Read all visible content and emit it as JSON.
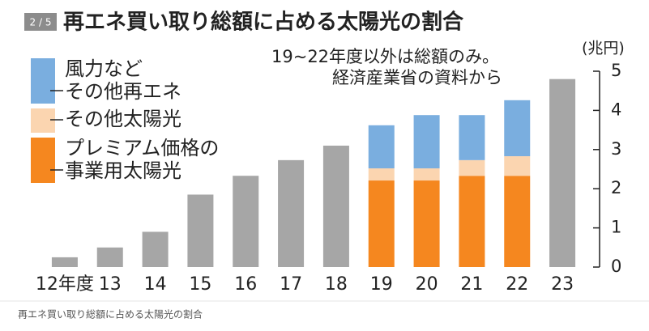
{
  "header": {
    "badge": "2 / 5"
  },
  "chart_data": {
    "type": "stacked_bar",
    "title": "再エネ買い取り総額に占める太陽光の割合",
    "note": [
      "19~22年度以外は総額のみ。",
      "経済産業省の資料から"
    ],
    "unit": "(兆円)",
    "categories": [
      "12年度",
      "13",
      "14",
      "15",
      "16",
      "17",
      "18",
      "19",
      "20",
      "21",
      "22",
      "23"
    ],
    "series": [
      {
        "name": null,
        "color": "#a6a6a6",
        "values": [
          0.25,
          0.5,
          0.9,
          1.85,
          2.33,
          2.73,
          3.1,
          null,
          null,
          null,
          null,
          4.8
        ]
      },
      {
        "name": [
          "風力など",
          "その他再エネ"
        ],
        "color": "#7aaedf",
        "values": [
          null,
          null,
          null,
          null,
          null,
          null,
          null,
          1.1,
          1.36,
          1.15,
          1.43,
          null
        ]
      },
      {
        "name": [
          "その他太陽光"
        ],
        "color": "#fbd5b0",
        "values": [
          null,
          null,
          null,
          null,
          null,
          null,
          null,
          0.31,
          0.31,
          0.4,
          0.5,
          null
        ]
      },
      {
        "name": [
          "プレミアム価格の",
          "事業用太陽光"
        ],
        "color": "#f5871f",
        "values": [
          null,
          null,
          null,
          null,
          null,
          null,
          null,
          2.21,
          2.21,
          2.33,
          2.33,
          null
        ]
      }
    ],
    "ylim": [
      0,
      5
    ],
    "yticks": [
      0,
      1,
      2,
      3,
      4,
      5
    ]
  },
  "caption": "再エネ買い取り総額に占める太陽光の割合"
}
